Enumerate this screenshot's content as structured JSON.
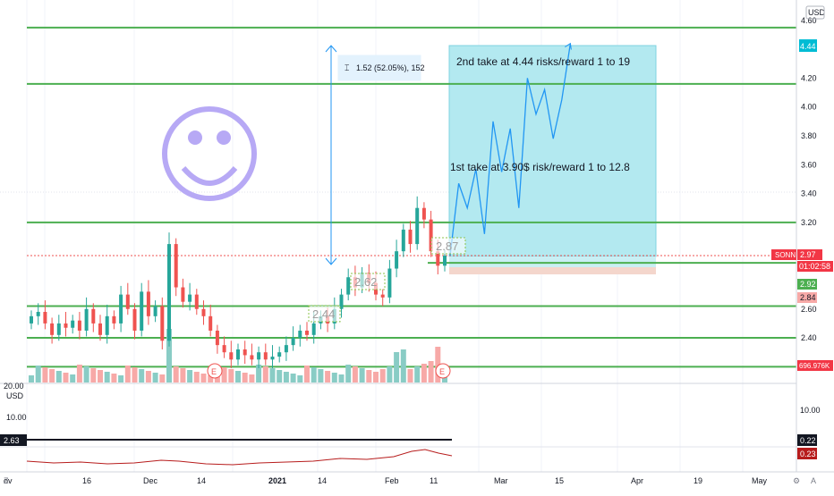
{
  "currency": "USD",
  "colors": {
    "up": "#26a69a",
    "down": "#ef5350",
    "line": "#4caf50",
    "zone": "#00bcd4",
    "path": "#2196f3",
    "smile": "#b7a9f5"
  },
  "price_axis": [
    {
      "v": 4.6,
      "t": "4.60"
    },
    {
      "v": 4.4,
      "t": "4.40"
    },
    {
      "v": 4.2,
      "t": "4.20"
    },
    {
      "v": 4.0,
      "t": "4.00"
    },
    {
      "v": 3.8,
      "t": "3.80"
    },
    {
      "v": 3.6,
      "t": "3.60"
    },
    {
      "v": 3.4,
      "t": "3.40"
    },
    {
      "v": 3.2,
      "t": "3.20"
    },
    {
      "v": 2.6,
      "t": "2.60"
    },
    {
      "v": 2.4,
      "t": "2.40"
    }
  ],
  "time_axis": [
    "ov",
    "16",
    "Dec",
    "14",
    "2021",
    "14",
    "Feb",
    "11",
    "Mar",
    "15",
    "Apr",
    "19",
    "May"
  ],
  "badges": {
    "take_profit": "4.44",
    "symbol": "SONN",
    "last_price": "2.97",
    "countdown": "01:02:58",
    "entry": "2.92",
    "stop": "2.84",
    "volume": "696.976K"
  },
  "lower_pane": {
    "top_label": "20.00",
    "unit": "USD",
    "mid_label": "10.00",
    "left_value": "2.63",
    "right_mid": "10.00",
    "right_val1": "0.22",
    "right_val2": "0.23"
  },
  "annotations": {
    "measure": "1.52 (52.05%), 152",
    "take2": "2nd take at 4.44 risks/reward 1 to 19",
    "take1": "1st take at 3.90$ risk/reward 1 to 12.8",
    "price_labels": [
      "2.44",
      "2.62",
      "2.87"
    ],
    "earnings": "E"
  },
  "chart_data": {
    "type": "candlestick",
    "horizontal_levels": [
      4.55,
      4.16,
      3.2,
      2.92,
      2.62,
      2.4,
      2.2
    ],
    "dotted_level": 2.97,
    "forecast_path": [
      2.97,
      3.47,
      3.3,
      3.57,
      3.12,
      3.9,
      3.55,
      3.85,
      3.3,
      4.2,
      3.95,
      4.12,
      3.78,
      4.05,
      4.44
    ],
    "closes": [
      2.55,
      2.58,
      2.5,
      2.42,
      2.5,
      2.47,
      2.52,
      2.45,
      2.6,
      2.5,
      2.42,
      2.55,
      2.5,
      2.7,
      2.6,
      2.45,
      2.72,
      2.55,
      2.62,
      2.38,
      3.05,
      2.75,
      2.65,
      2.7,
      2.6,
      2.55,
      2.45,
      2.35,
      2.3,
      2.25,
      2.32,
      2.28,
      2.25,
      2.3,
      2.25,
      2.27,
      2.3,
      2.35,
      2.4,
      2.45,
      2.42,
      2.5,
      2.55,
      2.5,
      2.6,
      2.7,
      2.82,
      2.75,
      2.85,
      2.78,
      2.7,
      2.68,
      2.88,
      3.0,
      3.15,
      3.05,
      3.3,
      3.22,
      3.0,
      2.9,
      2.97
    ]
  }
}
